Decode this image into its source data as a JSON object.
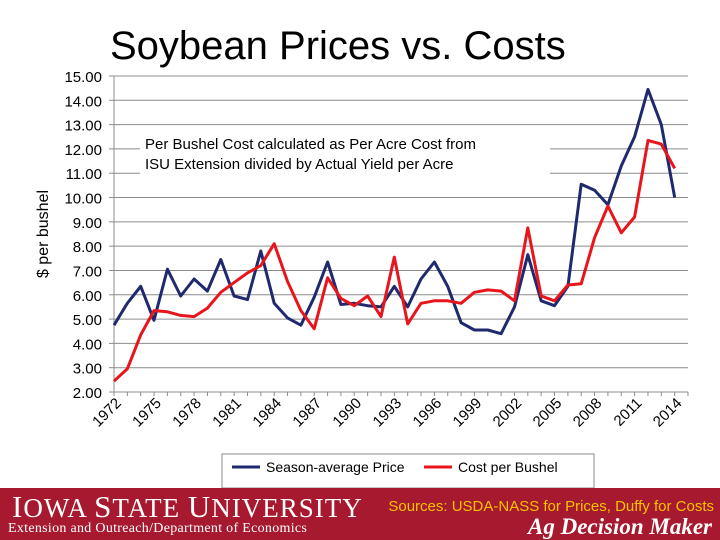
{
  "page_title": "Soybean Prices vs. Costs",
  "chart_data": {
    "type": "line",
    "title": "Soybean Prices vs. Costs",
    "xlabel": "",
    "ylabel": "$ per bushel",
    "ylim": [
      2.0,
      15.0
    ],
    "yticks": [
      "2.00",
      "3.00",
      "4.00",
      "5.00",
      "6.00",
      "7.00",
      "8.00",
      "9.00",
      "10.00",
      "11.00",
      "12.00",
      "13.00",
      "14.00",
      "15.00"
    ],
    "xlim": [
      1972,
      2015
    ],
    "xticks": [
      "1972",
      "1975",
      "1978",
      "1981",
      "1984",
      "1987",
      "1990",
      "1993",
      "1996",
      "1999",
      "2002",
      "2005",
      "2008",
      "2011",
      "2014"
    ],
    "grid": true,
    "x": [
      1972,
      1973,
      1974,
      1975,
      1976,
      1977,
      1978,
      1979,
      1980,
      1981,
      1982,
      1983,
      1984,
      1985,
      1986,
      1987,
      1988,
      1989,
      1990,
      1991,
      1992,
      1993,
      1994,
      1995,
      1996,
      1997,
      1998,
      1999,
      2000,
      2001,
      2002,
      2003,
      2004,
      2005,
      2006,
      2007,
      2008,
      2009,
      2010,
      2011,
      2012,
      2013,
      2014
    ],
    "series": [
      {
        "name": "Season-average Price",
        "color": "#1f2a6e",
        "values": [
          4.75,
          5.65,
          6.35,
          4.95,
          7.05,
          5.95,
          6.65,
          6.15,
          7.45,
          5.95,
          5.8,
          7.8,
          5.65,
          5.05,
          4.75,
          5.9,
          7.35,
          5.6,
          5.65,
          5.55,
          5.5,
          6.35,
          5.5,
          6.65,
          7.35,
          6.35,
          4.85,
          4.55,
          4.55,
          4.4,
          5.5,
          7.65,
          5.75,
          5.55,
          6.35,
          10.55,
          10.3,
          9.7,
          11.3,
          12.5,
          14.45,
          13.0,
          10.0
        ]
      },
      {
        "name": "Cost per Bushel",
        "color": "#e8161c",
        "values": [
          2.45,
          2.95,
          4.35,
          5.35,
          5.3,
          5.15,
          5.1,
          5.45,
          6.1,
          6.5,
          6.9,
          7.2,
          8.1,
          6.55,
          5.35,
          4.6,
          6.7,
          5.85,
          5.55,
          5.95,
          5.1,
          7.55,
          4.8,
          5.65,
          5.75,
          5.75,
          5.65,
          6.1,
          6.2,
          6.15,
          5.75,
          8.75,
          5.95,
          5.75,
          6.4,
          6.45,
          8.35,
          9.65,
          8.55,
          9.2,
          12.35,
          12.2,
          11.2
        ]
      }
    ],
    "annotation": "Per Bushel Cost calculated as Per Acre Cost from ISU Extension divided by Actual Yield per Acre",
    "annotation_lines": [
      "Per Bushel Cost calculated as Per Acre Cost from",
      "ISU Extension divided by Actual Yield per Acre"
    ],
    "legend_position": "bottom"
  },
  "footer": {
    "university": "Iowa State University",
    "department": "Extension and Outreach/Department of Economics",
    "sources": "Sources: USDA-NASS for Prices, Duffy for Costs",
    "program": "Ag Decision Maker",
    "background_color": "#a6192e",
    "sources_color": "#f5c400"
  }
}
